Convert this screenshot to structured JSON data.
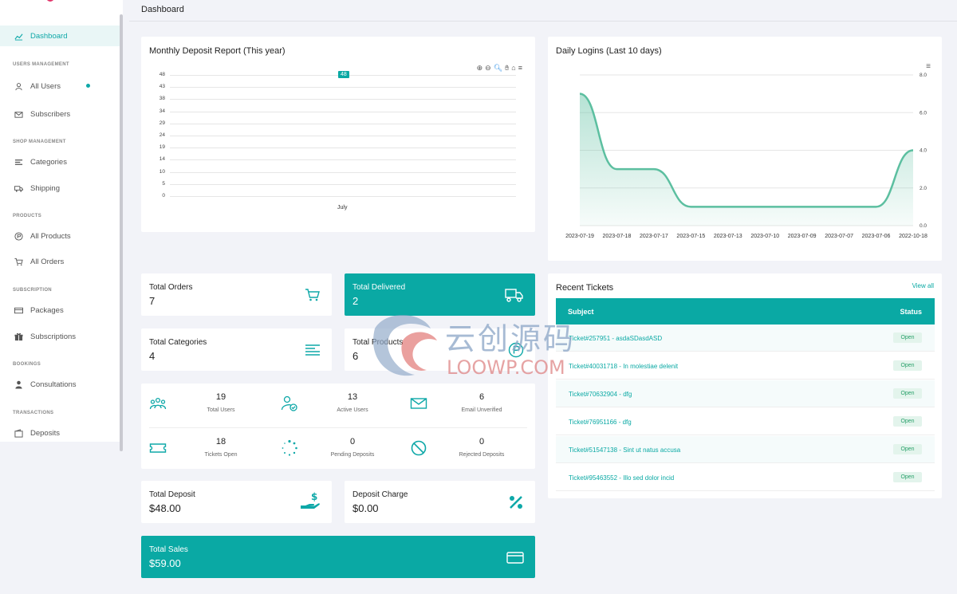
{
  "sidebar": {
    "active_item": "Dashboard",
    "sections": {
      "users": "USERS MANAGEMENT",
      "shop": "SHOP MANAGEMENT",
      "products": "PRODUCTS",
      "subscription": "SUBSCRIPTION",
      "bookings": "BOOKINGS",
      "transactions": "TRANSACTIONS"
    },
    "items": {
      "dashboard": "Dashboard",
      "all_users": "All Users",
      "subscribers": "Subscribers",
      "categories": "Categories",
      "shipping": "Shipping",
      "all_products": "All Products",
      "all_orders": "All Orders",
      "packages": "Packages",
      "subscriptions": "Subscriptions",
      "consultations": "Consultations",
      "deposits": "Deposits"
    }
  },
  "header": {
    "title": "Dashboard"
  },
  "deposit_chart": {
    "title": "Monthly Deposit Report (This year)",
    "chart_data": {
      "type": "bar",
      "categories": [
        "July"
      ],
      "values": [
        48
      ],
      "data_label": "48",
      "yticks": [
        "48",
        "43",
        "38",
        "34",
        "29",
        "24",
        "19",
        "14",
        "10",
        "5",
        "0"
      ],
      "ylim": [
        0,
        48
      ]
    },
    "toolbar_icons": [
      "zoom-in-icon",
      "zoom-out-icon",
      "magnify-icon",
      "pan-hand-icon",
      "home-icon",
      "menu-icon"
    ]
  },
  "logins_chart": {
    "title": "Daily Logins (Last 10 days)",
    "chart_data": {
      "type": "area",
      "x": [
        "2023-07-19",
        "2023-07-18",
        "2023-07-17",
        "2023-07-15",
        "2023-07-13",
        "2023-07-10",
        "2023-07-09",
        "2023-07-07",
        "2023-07-06",
        "2022-10-18"
      ],
      "values": [
        7,
        3,
        3,
        1,
        1,
        1,
        1,
        1,
        1,
        4
      ],
      "yticks": [
        "8.0",
        "6.0",
        "4.0",
        "2.0",
        "0.0"
      ],
      "ylim": [
        0,
        8
      ],
      "color": "#5cbfa0"
    }
  },
  "stats": {
    "total_orders": {
      "label": "Total Orders",
      "value": "7"
    },
    "total_delivered": {
      "label": "Total Delivered",
      "value": "2"
    },
    "total_categories": {
      "label": "Total Categories",
      "value": "4"
    },
    "total_products": {
      "label": "Total Products",
      "value": "6"
    },
    "total_deposit": {
      "label": "Total Deposit",
      "value": "$48.00"
    },
    "deposit_charge": {
      "label": "Deposit Charge",
      "value": "$0.00"
    },
    "total_sales": {
      "label": "Total Sales",
      "value": "$59.00"
    }
  },
  "mini_stats": {
    "total_users": {
      "value": "19",
      "label": "Total Users"
    },
    "active_users": {
      "value": "13",
      "label": "Active Users"
    },
    "email_unverified": {
      "value": "6",
      "label": "Email Unverified"
    },
    "tickets_open": {
      "value": "18",
      "label": "Tickets Open"
    },
    "pending_deposits": {
      "value": "0",
      "label": "Pending Deposits"
    },
    "rejected_deposits": {
      "value": "0",
      "label": "Rejected Deposits"
    }
  },
  "tickets": {
    "title": "Recent Tickets",
    "view_all": "View all",
    "columns": {
      "subject": "Subject",
      "status": "Status"
    },
    "rows": [
      {
        "subject": "Ticket#257951 - asdaSDasdASD",
        "status": "Open"
      },
      {
        "subject": "Ticket#40031718 - In molestiae delenit",
        "status": "Open"
      },
      {
        "subject": "Ticket#70632904 - dfg",
        "status": "Open"
      },
      {
        "subject": "Ticket#76951166 - dfg",
        "status": "Open"
      },
      {
        "subject": "Ticket#51547138 - Sint ut natus accusa",
        "status": "Open"
      },
      {
        "subject": "Ticket#95463552 - Illo sed dolor incid",
        "status": "Open"
      }
    ]
  },
  "watermark": {
    "cn": "云创源码",
    "en": "LOOWP.COM"
  },
  "colors": {
    "accent": "#0aa9a4",
    "line": "#5cbfa0",
    "badge_bg": "#e3f4ec"
  }
}
